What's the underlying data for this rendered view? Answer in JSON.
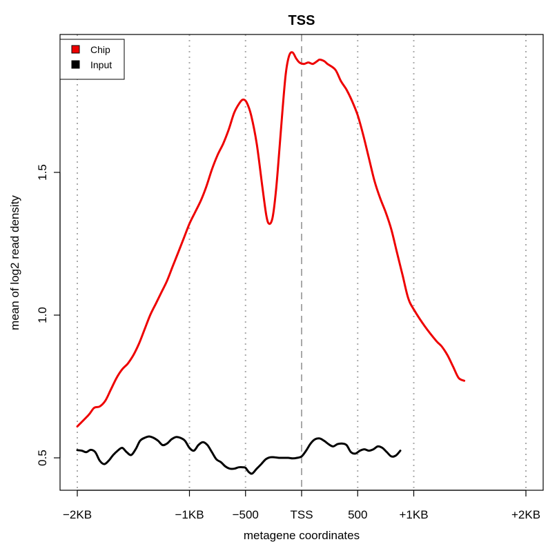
{
  "chart_data": {
    "type": "line",
    "title": "TSS",
    "xlabel": "metagene coordinates",
    "ylabel": "mean of log2 read density",
    "xlim": [
      -2000,
      2000
    ],
    "ylim": [
      0.45,
      1.95
    ],
    "x_ticks": [
      {
        "value": -2000,
        "label": "−2KB"
      },
      {
        "value": -1000,
        "label": "−1KB"
      },
      {
        "value": -500,
        "label": "−500"
      },
      {
        "value": 0,
        "label": "TSS"
      },
      {
        "value": 500,
        "label": "500"
      },
      {
        "value": 1000,
        "label": "+1KB"
      },
      {
        "value": 2000,
        "label": "+2KB"
      }
    ],
    "y_ticks": [
      {
        "value": 0.5,
        "label": "0.5"
      },
      {
        "value": 1.0,
        "label": "1.0"
      },
      {
        "value": 1.5,
        "label": "1.5"
      }
    ],
    "vertical_guides": {
      "dotted": [
        -2000,
        -1000,
        -500,
        500,
        1000,
        2000
      ],
      "dashed": [
        0
      ]
    },
    "legend": {
      "position": "top-left",
      "entries": [
        {
          "label": "Chip",
          "color": "#ee0000"
        },
        {
          "label": "Input",
          "color": "#000000"
        }
      ]
    },
    "series": [
      {
        "name": "Chip",
        "color": "#ee0000",
        "points": [
          [
            -2000,
            0.61
          ],
          [
            -1900,
            0.65
          ],
          [
            -1850,
            0.675
          ],
          [
            -1800,
            0.68
          ],
          [
            -1750,
            0.7
          ],
          [
            -1700,
            0.74
          ],
          [
            -1650,
            0.78
          ],
          [
            -1600,
            0.81
          ],
          [
            -1550,
            0.83
          ],
          [
            -1500,
            0.86
          ],
          [
            -1450,
            0.9
          ],
          [
            -1400,
            0.95
          ],
          [
            -1350,
            1.0
          ],
          [
            -1300,
            1.04
          ],
          [
            -1250,
            1.08
          ],
          [
            -1200,
            1.12
          ],
          [
            -1150,
            1.17
          ],
          [
            -1100,
            1.22
          ],
          [
            -1050,
            1.27
          ],
          [
            -1000,
            1.32
          ],
          [
            -950,
            1.36
          ],
          [
            -900,
            1.4
          ],
          [
            -850,
            1.45
          ],
          [
            -800,
            1.51
          ],
          [
            -750,
            1.56
          ],
          [
            -700,
            1.6
          ],
          [
            -650,
            1.65
          ],
          [
            -600,
            1.71
          ],
          [
            -550,
            1.745
          ],
          [
            -520,
            1.755
          ],
          [
            -490,
            1.745
          ],
          [
            -450,
            1.7
          ],
          [
            -400,
            1.6
          ],
          [
            -350,
            1.45
          ],
          [
            -315,
            1.35
          ],
          [
            -290,
            1.32
          ],
          [
            -260,
            1.34
          ],
          [
            -230,
            1.43
          ],
          [
            -200,
            1.57
          ],
          [
            -170,
            1.72
          ],
          [
            -140,
            1.85
          ],
          [
            -110,
            1.91
          ],
          [
            -80,
            1.92
          ],
          [
            -50,
            1.9
          ],
          [
            -20,
            1.885
          ],
          [
            20,
            1.88
          ],
          [
            60,
            1.885
          ],
          [
            100,
            1.88
          ],
          [
            140,
            1.89
          ],
          [
            160,
            1.895
          ],
          [
            200,
            1.89
          ],
          [
            230,
            1.88
          ],
          [
            300,
            1.86
          ],
          [
            350,
            1.82
          ],
          [
            400,
            1.79
          ],
          [
            450,
            1.75
          ],
          [
            500,
            1.7
          ],
          [
            550,
            1.63
          ],
          [
            600,
            1.55
          ],
          [
            650,
            1.47
          ],
          [
            700,
            1.41
          ],
          [
            750,
            1.36
          ],
          [
            800,
            1.3
          ],
          [
            850,
            1.22
          ],
          [
            900,
            1.14
          ],
          [
            950,
            1.06
          ],
          [
            1000,
            1.02
          ],
          [
            1100,
            0.96
          ],
          [
            1200,
            0.91
          ],
          [
            1250,
            0.89
          ],
          [
            1300,
            0.86
          ],
          [
            1350,
            0.82
          ],
          [
            1400,
            0.78
          ],
          [
            1450,
            0.77
          ]
        ]
      },
      {
        "name": "Input",
        "color": "#000000",
        "points": [
          [
            -2000,
            0.527
          ],
          [
            -1960,
            0.525
          ],
          [
            -1920,
            0.52
          ],
          [
            -1880,
            0.528
          ],
          [
            -1840,
            0.52
          ],
          [
            -1800,
            0.49
          ],
          [
            -1760,
            0.478
          ],
          [
            -1720,
            0.49
          ],
          [
            -1680,
            0.51
          ],
          [
            -1640,
            0.525
          ],
          [
            -1600,
            0.535
          ],
          [
            -1560,
            0.52
          ],
          [
            -1520,
            0.51
          ],
          [
            -1480,
            0.53
          ],
          [
            -1440,
            0.56
          ],
          [
            -1400,
            0.57
          ],
          [
            -1360,
            0.575
          ],
          [
            -1320,
            0.57
          ],
          [
            -1280,
            0.56
          ],
          [
            -1240,
            0.545
          ],
          [
            -1200,
            0.55
          ],
          [
            -1160,
            0.565
          ],
          [
            -1120,
            0.573
          ],
          [
            -1080,
            0.57
          ],
          [
            -1040,
            0.56
          ],
          [
            -1000,
            0.535
          ],
          [
            -960,
            0.525
          ],
          [
            -920,
            0.545
          ],
          [
            -880,
            0.555
          ],
          [
            -840,
            0.545
          ],
          [
            -800,
            0.52
          ],
          [
            -760,
            0.495
          ],
          [
            -720,
            0.485
          ],
          [
            -680,
            0.47
          ],
          [
            -640,
            0.462
          ],
          [
            -600,
            0.462
          ],
          [
            -560,
            0.467
          ],
          [
            -520,
            0.467
          ],
          [
            -500,
            0.465
          ],
          [
            -470,
            0.45
          ],
          [
            -440,
            0.445
          ],
          [
            -400,
            0.462
          ],
          [
            -360,
            0.478
          ],
          [
            -320,
            0.495
          ],
          [
            -280,
            0.502
          ],
          [
            -240,
            0.502
          ],
          [
            -200,
            0.5
          ],
          [
            -160,
            0.5
          ],
          [
            -120,
            0.5
          ],
          [
            -80,
            0.498
          ],
          [
            -40,
            0.5
          ],
          [
            0,
            0.505
          ],
          [
            40,
            0.525
          ],
          [
            80,
            0.55
          ],
          [
            120,
            0.565
          ],
          [
            160,
            0.568
          ],
          [
            200,
            0.56
          ],
          [
            240,
            0.548
          ],
          [
            280,
            0.54
          ],
          [
            320,
            0.548
          ],
          [
            360,
            0.55
          ],
          [
            400,
            0.545
          ],
          [
            440,
            0.52
          ],
          [
            480,
            0.515
          ],
          [
            520,
            0.525
          ],
          [
            560,
            0.53
          ],
          [
            600,
            0.525
          ],
          [
            640,
            0.53
          ],
          [
            680,
            0.54
          ],
          [
            720,
            0.535
          ],
          [
            760,
            0.52
          ],
          [
            800,
            0.505
          ],
          [
            840,
            0.508
          ],
          [
            880,
            0.525
          ]
        ]
      }
    ]
  }
}
